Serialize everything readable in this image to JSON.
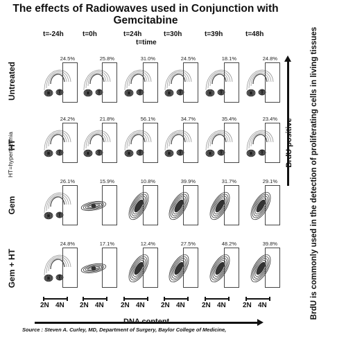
{
  "title_line1": "The effects of Radiowaves used in Conjunction with",
  "title_line2": "Gemcitabine",
  "time_note": "t=time",
  "times": [
    "t=-24h",
    "t=0h",
    "t=24h",
    "t=30h",
    "t=39h",
    "t=48h"
  ],
  "ht_note": "HT=hyperthermia",
  "rows": [
    {
      "label": "Untreated",
      "values": [
        "24.5%",
        "25.8%",
        "31.0%",
        "24.5%",
        "18.1%",
        "24.8%"
      ]
    },
    {
      "label": "HT",
      "values": [
        "24.2%",
        "21.8%",
        "56.1%",
        "34.7%",
        "35.4%",
        "23.4%"
      ]
    },
    {
      "label": "Gem",
      "values": [
        "26.1%",
        "15.9%",
        "10.8%",
        "39.9%",
        "31.7%",
        "29.1%"
      ]
    },
    {
      "label": "Gem + HT",
      "values": [
        "24.8%",
        "17.1%",
        "12.4%",
        "27.5%",
        "48.2%",
        "39.8%"
      ]
    }
  ],
  "scale_2n": "2N",
  "scale_4n": "4N",
  "x_axis": "DNA content",
  "y_axis": "BrdU positive",
  "side_note": "BrdU is commonly used in the detection of proliferating cells in living tissues",
  "source": "Source : Steven A. Curley, MD, Department of Surgery, Baylor College of Medicine,"
}
